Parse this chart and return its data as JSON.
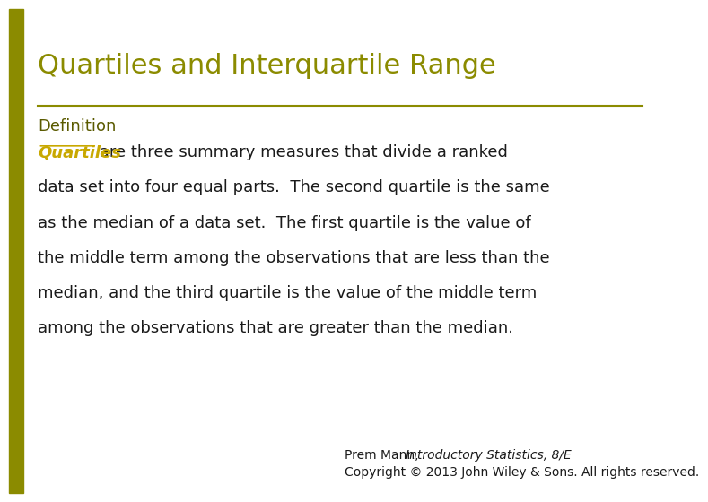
{
  "title": "Quartiles and Interquartile Range",
  "title_color": "#8B8B00",
  "title_fontsize": 22,
  "definition_label": "Definition",
  "definition_color": "#5A5A00",
  "definition_fontsize": 13,
  "quartiles_word": "Quartiles",
  "quartiles_color": "#C8A800",
  "body_color": "#1a1a1a",
  "body_fontsize": 13,
  "footer_line1": "Prem Mann, ",
  "footer_italic": "Introductory Statistics, 8/E",
  "footer_line2": "Copyright © 2013 John Wiley & Sons. All rights reserved.",
  "footer_fontsize": 10,
  "separator_color": "#8B8B00",
  "background_color": "#ffffff",
  "left_accent_color": "#8B8B00"
}
